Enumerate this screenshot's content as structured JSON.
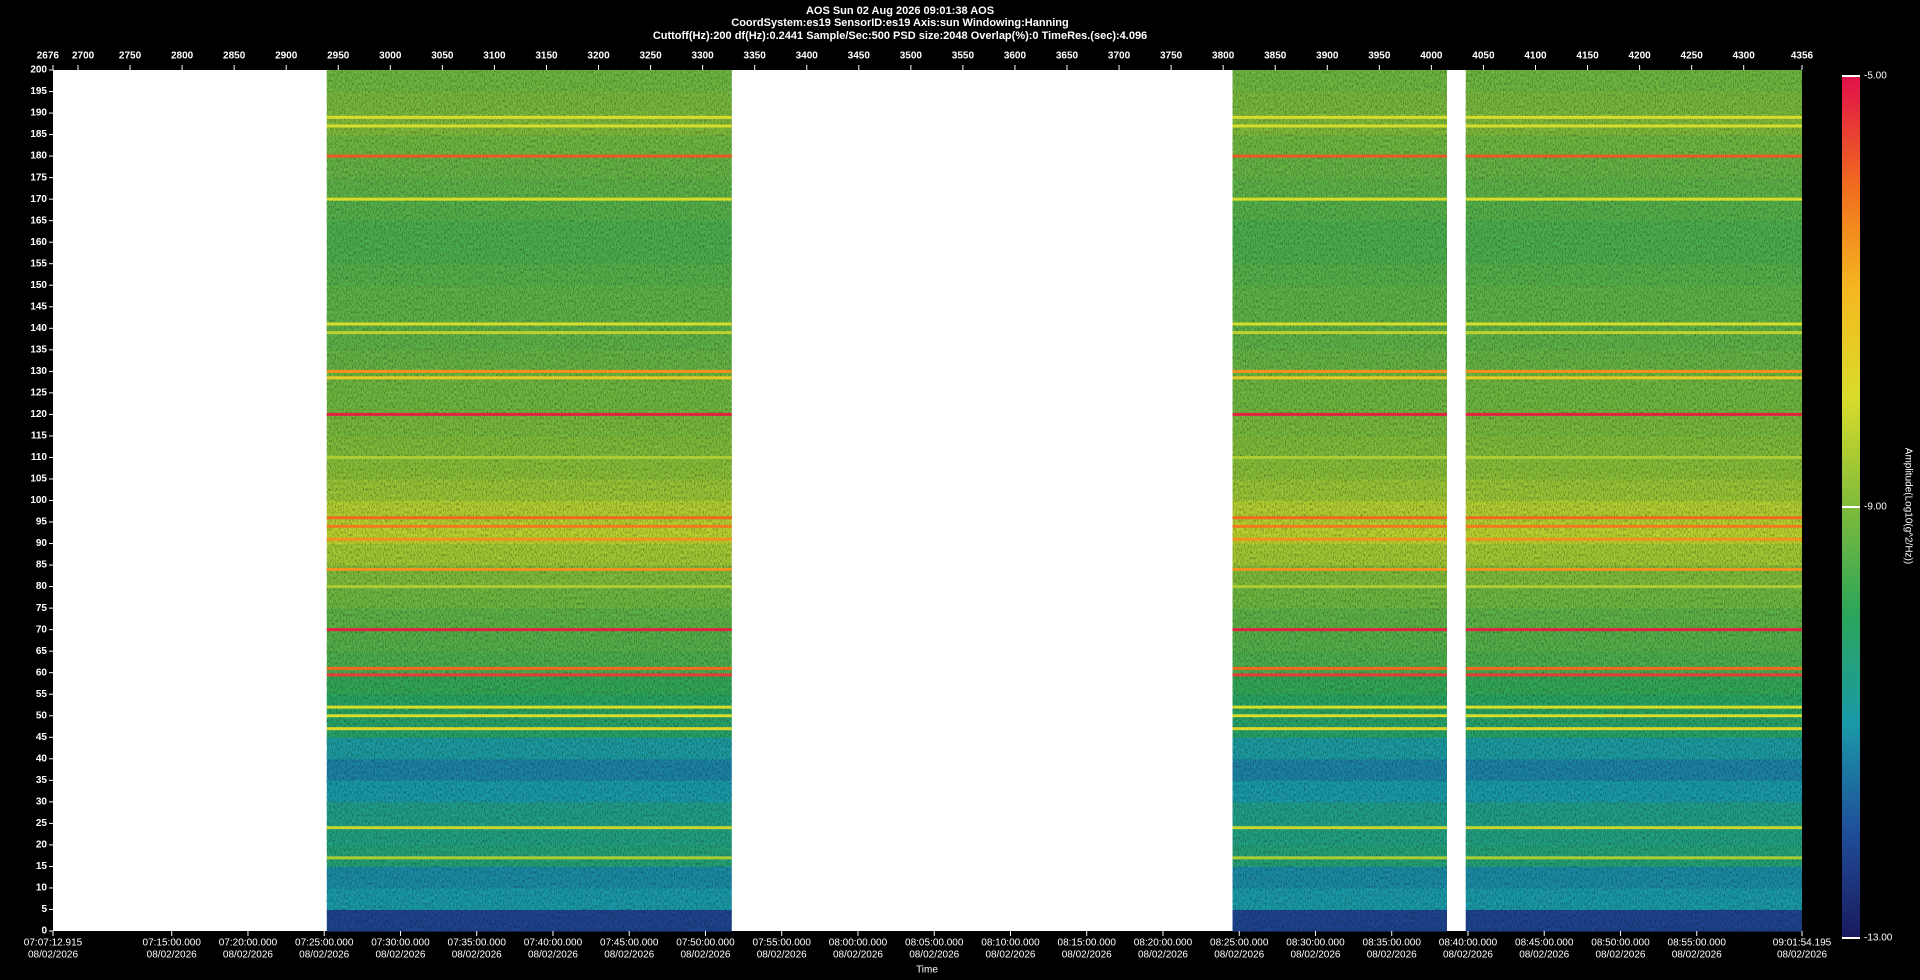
{
  "chart_data": {
    "type": "spectrogram",
    "title": "AOS  Sun 02 Aug 2026 09:01:38  AOS",
    "subtitle": "CoordSystem:es19   SensorID:es19   Axis:sun   Windowing:Hanning",
    "parameters": "Cuttoff(Hz):200    df(Hz):0.2441    Sample/Sec:500    PSD size:2048    Overlap(%):0    TimeRes.(sec):4.096",
    "x2_label": "Time",
    "colorbar_label": "Amplitude(Log10(g^2/Hz))",
    "xlim": [
      2676,
      4356
    ],
    "xticks": [
      2676,
      2700,
      2750,
      2800,
      2850,
      2900,
      2950,
      3000,
      3050,
      3100,
      3150,
      3200,
      3250,
      3300,
      3350,
      3400,
      3450,
      3500,
      3550,
      3600,
      3650,
      3700,
      3750,
      3800,
      3850,
      3900,
      3950,
      4000,
      4050,
      4100,
      4150,
      4200,
      4250,
      4300,
      4356
    ],
    "x2lim": [
      25632.915,
      32514.195
    ],
    "x2ticks": [
      {
        "value": 25632.915,
        "label": "07:07:12.915"
      },
      {
        "value": 26100,
        "label": "07:15:00.000"
      },
      {
        "value": 26400,
        "label": "07:20:00.000"
      },
      {
        "value": 26700,
        "label": "07:25:00.000"
      },
      {
        "value": 27000,
        "label": "07:30:00.000"
      },
      {
        "value": 27300,
        "label": "07:35:00.000"
      },
      {
        "value": 27600,
        "label": "07:40:00.000"
      },
      {
        "value": 27900,
        "label": "07:45:00.000"
      },
      {
        "value": 28200,
        "label": "07:50:00.000"
      },
      {
        "value": 28500,
        "label": "07:55:00.000"
      },
      {
        "value": 28800,
        "label": "08:00:00.000"
      },
      {
        "value": 29100,
        "label": "08:05:00.000"
      },
      {
        "value": 29400,
        "label": "08:10:00.000"
      },
      {
        "value": 29700,
        "label": "08:15:00.000"
      },
      {
        "value": 30000,
        "label": "08:20:00.000"
      },
      {
        "value": 30300,
        "label": "08:25:00.000"
      },
      {
        "value": 30600,
        "label": "08:30:00.000"
      },
      {
        "value": 30900,
        "label": "08:35:00.000"
      },
      {
        "value": 31200,
        "label": "08:40:00.000"
      },
      {
        "value": 31500,
        "label": "08:45:00.000"
      },
      {
        "value": 31800,
        "label": "08:50:00.000"
      },
      {
        "value": 32100,
        "label": "08:55:00.000"
      },
      {
        "value": 32514.195,
        "label": "09:01:54.195"
      }
    ],
    "x2tick_dates": [
      "08/02/2026",
      "08/02/2026",
      "08/02/2026",
      "08/02/2026",
      "08/02/2026",
      "08/02/2026",
      "08/02/2026",
      "08/02/2026",
      "08/02/2026",
      "08/02/2026",
      "08/02/2026",
      "08/02/2026",
      "08/02/2026",
      "08/02/2026",
      "08/02/2026",
      "08/02/2026",
      "08/02/2026",
      "08/02/2026",
      "08/02/2026",
      "08/02/2026",
      "08/02/2026",
      "08/02/2026",
      "08/02/2026"
    ],
    "ylim": [
      0,
      200
    ],
    "yticks": [
      0,
      5,
      10,
      15,
      20,
      25,
      30,
      35,
      40,
      45,
      50,
      55,
      60,
      65,
      70,
      75,
      80,
      85,
      90,
      95,
      100,
      105,
      110,
      115,
      120,
      125,
      130,
      135,
      140,
      145,
      150,
      155,
      160,
      165,
      170,
      175,
      180,
      185,
      190,
      195,
      200
    ],
    "clim": [
      -13,
      -5
    ],
    "cticks": [
      {
        "value": -5,
        "label": "-5.00"
      },
      {
        "value": -9,
        "label": "-9.00"
      },
      {
        "value": -13,
        "label": "-13.00"
      }
    ],
    "colormap": [
      "#1a1a5e",
      "#1f4f9a",
      "#1a9aa8",
      "#2aa55a",
      "#7fbb3a",
      "#d8dc2c",
      "#f5b820",
      "#f06a1e",
      "#e0104a"
    ],
    "segments": [
      [
        2939,
        3328
      ],
      [
        3809,
        4015
      ],
      [
        4033,
        4356
      ]
    ],
    "bands": {
      "bins": [
        0,
        5,
        10,
        15,
        20,
        25,
        30,
        35,
        40,
        45,
        50,
        55,
        60,
        65,
        70,
        75,
        80,
        85,
        90,
        95,
        100,
        105,
        110,
        115,
        120,
        125,
        130,
        135,
        140,
        145,
        150,
        155,
        160,
        165,
        170,
        175,
        180,
        185,
        190,
        195,
        200
      ],
      "amplitude": [
        -12.2,
        -11.0,
        -11.2,
        -10.4,
        -10.5,
        -10.6,
        -11.0,
        -11.3,
        -10.9,
        -10.2,
        -10.1,
        -9.9,
        -9.6,
        -9.5,
        -9.4,
        -9.2,
        -9.0,
        -8.6,
        -8.3,
        -8.4,
        -8.7,
        -8.9,
        -9.0,
        -9.1,
        -9.2,
        -9.2,
        -9.3,
        -9.4,
        -9.4,
        -9.4,
        -9.5,
        -9.6,
        -9.6,
        -9.5,
        -9.4,
        -9.3,
        -9.2,
        -9.0,
        -9.1,
        -9.2
      ]
    },
    "lines": {
      "freqs": [
        189,
        187,
        180,
        170,
        141,
        139,
        130,
        128.5,
        120,
        110,
        96,
        94,
        91,
        84,
        80,
        70,
        61,
        59.5,
        52,
        50,
        47,
        24,
        17
      ],
      "amplitude": [
        -8,
        -8,
        -5.8,
        -8,
        -8,
        -8.3,
        -6.5,
        -7.5,
        -5.2,
        -8.5,
        -6,
        -6.2,
        -6.5,
        -6.5,
        -8.5,
        -5.2,
        -6,
        -5.5,
        -8,
        -8,
        -7.8,
        -8.2,
        -8.5
      ]
    }
  }
}
